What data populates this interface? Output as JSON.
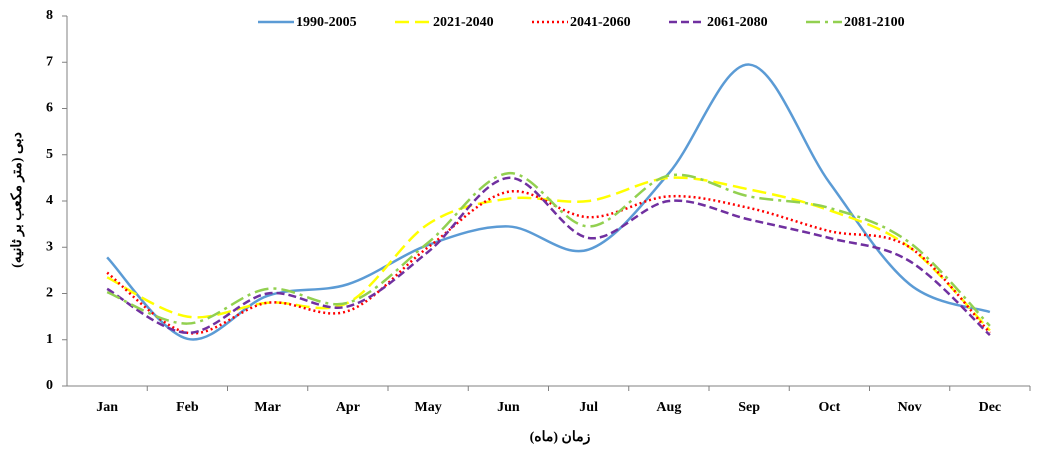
{
  "chart_data": {
    "type": "line",
    "x_label": "زمان (ماه)",
    "y_label": "دبی (متر مکعب بر ثانیه)",
    "categories": [
      "Jan",
      "Feb",
      "Mar",
      "Apr",
      "May",
      "Jun",
      "Jul",
      "Aug",
      "Sep",
      "Oct",
      "Nov",
      "Dec"
    ],
    "ylim": [
      0,
      8
    ],
    "yticks": [
      0,
      1,
      2,
      3,
      4,
      5,
      6,
      7,
      8
    ],
    "smooth": true,
    "legend": "top",
    "series": [
      {
        "name": "1990-2005",
        "color": "#5b9bd5",
        "dash": "solid",
        "values": [
          2.78,
          1.02,
          1.95,
          2.2,
          3.05,
          3.45,
          2.95,
          4.6,
          6.95,
          4.4,
          2.2,
          1.6
        ]
      },
      {
        "name": "2021-2040",
        "color": "#ffff00",
        "dash": "long-dash",
        "values": [
          2.35,
          1.5,
          1.8,
          1.8,
          3.5,
          4.05,
          4.0,
          4.5,
          4.25,
          3.8,
          3.0,
          1.2
        ]
      },
      {
        "name": "2041-2060",
        "color": "#ff0000",
        "dash": "dotted",
        "values": [
          2.45,
          1.15,
          1.8,
          1.62,
          3.0,
          4.2,
          3.65,
          4.1,
          3.85,
          3.35,
          3.0,
          1.15
        ]
      },
      {
        "name": "2061-2080",
        "color": "#7030a0",
        "dash": "dashed",
        "values": [
          2.1,
          1.15,
          2.0,
          1.72,
          2.9,
          4.5,
          3.2,
          4.0,
          3.6,
          3.2,
          2.7,
          1.1
        ]
      },
      {
        "name": "2081-2100",
        "color": "#92d050",
        "dash": "dash-dot",
        "values": [
          2.03,
          1.35,
          2.1,
          1.8,
          3.1,
          4.6,
          3.45,
          4.55,
          4.1,
          3.85,
          3.1,
          1.3
        ]
      }
    ]
  }
}
